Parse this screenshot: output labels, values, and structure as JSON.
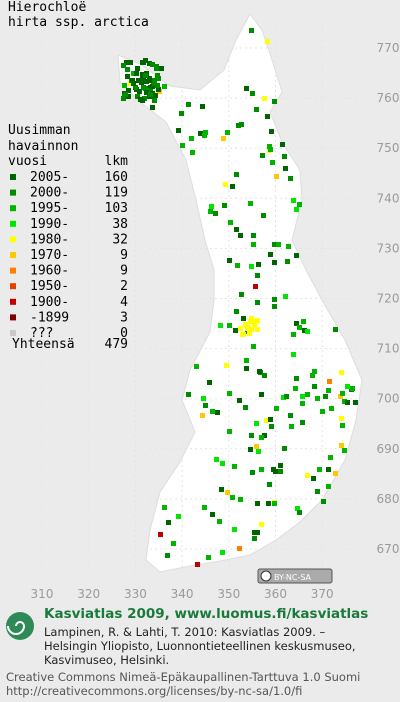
{
  "title": [
    "Hierochloë",
    "hirta ssp. arctica"
  ],
  "legend": {
    "heading": [
      "Uusimman",
      "havainnon",
      "vuosi",
      "lkm"
    ],
    "entries": [
      {
        "label": "2005-",
        "count": 160,
        "color": "#006400"
      },
      {
        "label": "2000-",
        "count": 119,
        "color": "#008c00"
      },
      {
        "label": "1995-",
        "count": 103,
        "color": "#00b400"
      },
      {
        "label": "1990-",
        "count": 38,
        "color": "#00e600"
      },
      {
        "label": "1980-",
        "count": 32,
        "color": "#ffff00"
      },
      {
        "label": "1970-",
        "count": 9,
        "color": "#ffc800"
      },
      {
        "label": "1960-",
        "count": 9,
        "color": "#ff8000"
      },
      {
        "label": "1950-",
        "count": 2,
        "color": "#e04000"
      },
      {
        "label": "1900-",
        "count": 4,
        "color": "#c00000"
      },
      {
        "label": "-1899",
        "count": 3,
        "color": "#800000"
      },
      {
        "label": "???",
        "count": 0,
        "color": "#c8c8c8"
      }
    ],
    "total": {
      "label": "Yhteensä",
      "count": 479
    }
  },
  "map": {
    "xticks": [
      310,
      320,
      330,
      340,
      350,
      360,
      370
    ],
    "yticks": [
      770,
      760,
      750,
      740,
      730,
      720,
      710,
      700,
      690,
      680,
      670
    ]
  },
  "badge": "BY-NC-SA",
  "footer": {
    "title": "Kasviatlas 2009, www.luomus.fi/kasviatlas",
    "citation": [
      "Lampinen, R. & Lahti, T. 2010: Kasviatlas 2009. –",
      "Helsingin Yliopisto, Luonnontieteellinen keskusmuseo,",
      "Kasvimuseo, Helsinki."
    ],
    "license": [
      "Creative Commons Nimeä-Epäkaupallinen-Tarttuva 1.0 Suomi",
      "http://creativecommons.org/licenses/by-nc-sa/1.0/fi"
    ]
  }
}
